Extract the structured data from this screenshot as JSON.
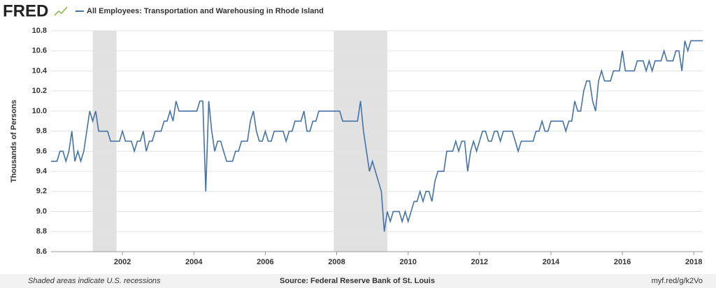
{
  "logo": "FRED",
  "chart_data": {
    "type": "line",
    "title": "All Employees: Transportation and Warehousing in Rhode Island",
    "y_label": "Thousands of Persons",
    "x": [
      2000,
      2000.083,
      2000.167,
      2000.25,
      2000.333,
      2000.417,
      2000.5,
      2000.583,
      2000.667,
      2000.75,
      2000.833,
      2000.917,
      2001,
      2001.083,
      2001.167,
      2001.25,
      2001.333,
      2001.417,
      2001.5,
      2001.583,
      2001.667,
      2001.75,
      2001.833,
      2001.917,
      2002,
      2002.083,
      2002.167,
      2002.25,
      2002.333,
      2002.417,
      2002.5,
      2002.583,
      2002.667,
      2002.75,
      2002.833,
      2002.917,
      2003,
      2003.083,
      2003.167,
      2003.25,
      2003.333,
      2003.417,
      2003.5,
      2003.583,
      2003.667,
      2003.75,
      2003.833,
      2003.917,
      2004,
      2004.083,
      2004.167,
      2004.25,
      2004.333,
      2004.417,
      2004.5,
      2004.583,
      2004.667,
      2004.75,
      2004.833,
      2004.917,
      2005,
      2005.083,
      2005.167,
      2005.25,
      2005.333,
      2005.417,
      2005.5,
      2005.583,
      2005.667,
      2005.75,
      2005.833,
      2005.917,
      2006,
      2006.083,
      2006.167,
      2006.25,
      2006.333,
      2006.417,
      2006.5,
      2006.583,
      2006.667,
      2006.75,
      2006.833,
      2006.917,
      2007,
      2007.083,
      2007.167,
      2007.25,
      2007.333,
      2007.417,
      2007.5,
      2007.583,
      2007.667,
      2007.75,
      2007.833,
      2007.917,
      2008,
      2008.083,
      2008.167,
      2008.25,
      2008.333,
      2008.417,
      2008.5,
      2008.583,
      2008.667,
      2008.75,
      2008.833,
      2008.917,
      2009,
      2009.083,
      2009.167,
      2009.25,
      2009.333,
      2009.417,
      2009.5,
      2009.583,
      2009.667,
      2009.75,
      2009.833,
      2009.917,
      2010,
      2010.083,
      2010.167,
      2010.25,
      2010.333,
      2010.417,
      2010.5,
      2010.583,
      2010.667,
      2010.75,
      2010.833,
      2010.917,
      2011,
      2011.083,
      2011.167,
      2011.25,
      2011.333,
      2011.417,
      2011.5,
      2011.583,
      2011.667,
      2011.75,
      2011.833,
      2011.917,
      2012,
      2012.083,
      2012.167,
      2012.25,
      2012.333,
      2012.417,
      2012.5,
      2012.583,
      2012.667,
      2012.75,
      2012.833,
      2012.917,
      2013,
      2013.083,
      2013.167,
      2013.25,
      2013.333,
      2013.417,
      2013.5,
      2013.583,
      2013.667,
      2013.75,
      2013.833,
      2013.917,
      2014,
      2014.083,
      2014.167,
      2014.25,
      2014.333,
      2014.417,
      2014.5,
      2014.583,
      2014.667,
      2014.75,
      2014.833,
      2014.917,
      2015,
      2015.083,
      2015.167,
      2015.25,
      2015.333,
      2015.417,
      2015.5,
      2015.583,
      2015.667,
      2015.75,
      2015.833,
      2015.917,
      2016,
      2016.083,
      2016.167,
      2016.25,
      2016.333,
      2016.417,
      2016.5,
      2016.583,
      2016.667,
      2016.75,
      2016.833,
      2016.917,
      2017,
      2017.083,
      2017.167,
      2017.25,
      2017.333,
      2017.417,
      2017.5,
      2017.583,
      2017.667,
      2017.75,
      2017.833,
      2017.917,
      2018,
      2018.083,
      2018.167,
      2018.25
    ],
    "series": [
      {
        "name": "All Employees: Transportation and Warehousing in Rhode Island",
        "color": "#4572a7",
        "values": [
          9.5,
          9.5,
          9.5,
          9.6,
          9.6,
          9.5,
          9.6,
          9.8,
          9.5,
          9.6,
          9.5,
          9.6,
          9.8,
          10.0,
          9.9,
          10.0,
          9.8,
          9.8,
          9.8,
          9.8,
          9.7,
          9.7,
          9.7,
          9.7,
          9.8,
          9.7,
          9.7,
          9.7,
          9.6,
          9.7,
          9.7,
          9.8,
          9.6,
          9.7,
          9.7,
          9.8,
          9.8,
          9.8,
          9.9,
          9.9,
          10.0,
          9.9,
          10.1,
          10.0,
          10.0,
          10.0,
          10.0,
          10.0,
          10.0,
          10.0,
          10.1,
          10.1,
          9.2,
          10.1,
          9.8,
          9.6,
          9.7,
          9.7,
          9.6,
          9.5,
          9.5,
          9.5,
          9.6,
          9.6,
          9.7,
          9.7,
          9.7,
          9.9,
          10.0,
          9.8,
          9.7,
          9.7,
          9.8,
          9.7,
          9.7,
          9.8,
          9.8,
          9.8,
          9.8,
          9.7,
          9.8,
          9.8,
          9.9,
          9.9,
          9.9,
          10.0,
          9.8,
          9.8,
          9.9,
          9.9,
          10.0,
          10.0,
          10.0,
          10.0,
          10.0,
          10.0,
          10.0,
          10.0,
          9.9,
          9.9,
          9.9,
          9.9,
          9.9,
          9.9,
          10.1,
          9.8,
          9.6,
          9.4,
          9.5,
          9.4,
          9.3,
          9.2,
          8.8,
          9.0,
          8.9,
          9.0,
          9.0,
          9.0,
          8.9,
          9.0,
          8.9,
          9.0,
          9.1,
          9.1,
          9.2,
          9.1,
          9.2,
          9.2,
          9.1,
          9.3,
          9.4,
          9.4,
          9.4,
          9.6,
          9.6,
          9.6,
          9.7,
          9.6,
          9.7,
          9.7,
          9.4,
          9.6,
          9.7,
          9.6,
          9.7,
          9.8,
          9.8,
          9.7,
          9.7,
          9.8,
          9.8,
          9.7,
          9.8,
          9.8,
          9.8,
          9.8,
          9.7,
          9.6,
          9.7,
          9.7,
          9.7,
          9.7,
          9.7,
          9.8,
          9.8,
          9.9,
          9.8,
          9.8,
          9.9,
          9.9,
          9.9,
          9.9,
          9.9,
          9.8,
          9.9,
          9.9,
          10.1,
          10.0,
          10.0,
          10.2,
          10.3,
          10.3,
          10.1,
          10.0,
          10.3,
          10.4,
          10.3,
          10.3,
          10.3,
          10.4,
          10.4,
          10.4,
          10.6,
          10.4,
          10.4,
          10.4,
          10.4,
          10.5,
          10.5,
          10.5,
          10.4,
          10.5,
          10.4,
          10.5,
          10.5,
          10.5,
          10.6,
          10.5,
          10.5,
          10.5,
          10.6,
          10.6,
          10.4,
          10.7,
          10.6,
          10.7,
          10.7,
          10.7,
          10.7,
          10.7
        ]
      }
    ],
    "recessions": [
      [
        2001.167,
        2001.833
      ],
      [
        2007.917,
        2009.417
      ]
    ],
    "xlim": [
      2000,
      2018.25
    ],
    "xticks": [
      2002,
      2004,
      2006,
      2008,
      2010,
      2012,
      2014,
      2016,
      2018
    ],
    "ylim": [
      8.6,
      10.8
    ],
    "yticks": [
      8.6,
      8.8,
      {
        "value": 9,
        "label": "9.0"
      },
      9.2,
      9.4,
      9.6,
      9.8,
      {
        "value": 10,
        "label": "10.0"
      },
      10.2,
      10.4,
      10.6,
      10.8
    ],
    "grid": true,
    "recession_color": "#e1e1e1"
  },
  "footer": {
    "note": "Shaded areas indicate U.S. recessions",
    "source": "Source: Federal Reserve Bank of St. Louis",
    "link": "myf.red/g/k2Vo"
  }
}
